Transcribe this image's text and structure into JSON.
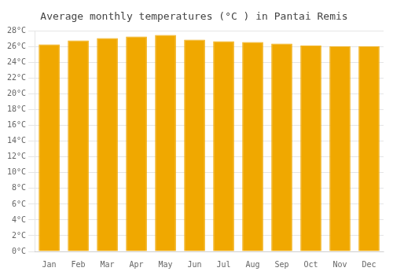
{
  "chart_data": {
    "type": "bar",
    "title": "Average monthly temperatures (°C ) in Pantai Remis",
    "categories": [
      "Jan",
      "Feb",
      "Mar",
      "Apr",
      "May",
      "Jun",
      "Jul",
      "Aug",
      "Sep",
      "Oct",
      "Nov",
      "Dec"
    ],
    "values": [
      26.3,
      26.8,
      27.1,
      27.3,
      27.5,
      26.9,
      26.7,
      26.6,
      26.4,
      26.2,
      26.1,
      26.1
    ],
    "color": "#F0A800",
    "ylim": [
      0,
      28
    ],
    "yticks": [
      {
        "value": 0,
        "label": "0°C"
      },
      {
        "value": 2,
        "label": "2°C"
      },
      {
        "value": 4,
        "label": "4°C"
      },
      {
        "value": 6,
        "label": "6°C"
      },
      {
        "value": 8,
        "label": "8°C"
      },
      {
        "value": 10,
        "label": "10°C"
      },
      {
        "value": 12,
        "label": "12°C"
      },
      {
        "value": 14,
        "label": "14°C"
      },
      {
        "value": 16,
        "label": "16°C"
      },
      {
        "value": 18,
        "label": "18°C"
      },
      {
        "value": 20,
        "label": "20°C"
      },
      {
        "value": 22,
        "label": "22°C"
      },
      {
        "value": 24,
        "label": "24°C"
      },
      {
        "value": 26,
        "label": "26°C"
      },
      {
        "value": 28,
        "label": "28°C"
      }
    ],
    "grid": true
  }
}
